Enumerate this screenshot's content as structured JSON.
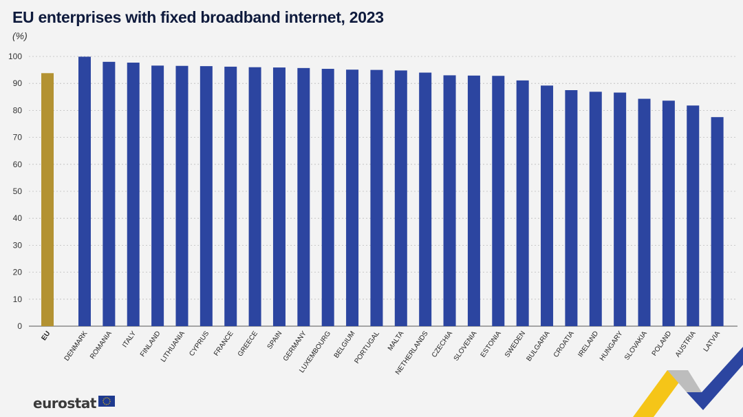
{
  "chart_data": {
    "type": "bar",
    "title": "EU enterprises with fixed broadband internet, 2023",
    "unit": "(%)",
    "categories": [
      "EU",
      "DENMARK",
      "ROMANIA",
      "ITALY",
      "FINLAND",
      "LITHUANIA",
      "CYPRUS",
      "FRANCE",
      "GREECE",
      "SPAIN",
      "GERMANY",
      "LUXEMBOURG",
      "BELGIUM",
      "PORTUGAL",
      "MALTA",
      "NETHERLANDS",
      "CZECHIA",
      "SLOVENIA",
      "ESTONIA",
      "SWEDEN",
      "BULGARIA",
      "CROATIA",
      "IRELAND",
      "HUNGARY",
      "SLOVAKIA",
      "POLAND",
      "AUSTRIA",
      "LATVIA"
    ],
    "values": [
      93.8,
      99.9,
      98.0,
      97.7,
      96.6,
      96.5,
      96.4,
      96.2,
      96.0,
      95.9,
      95.7,
      95.4,
      95.1,
      95.0,
      94.8,
      94.0,
      93.0,
      92.9,
      92.8,
      91.1,
      89.2,
      87.5,
      86.9,
      86.6,
      84.3,
      83.6,
      81.8,
      77.5
    ],
    "yticks": [
      0,
      10,
      20,
      30,
      40,
      50,
      60,
      70,
      80,
      90,
      100
    ],
    "ylim": [
      0,
      100
    ],
    "grid": true,
    "colors": {
      "eu": "#b39232",
      "country": "#2c45a0"
    }
  },
  "footer": {
    "logo_text": "eurostat"
  }
}
